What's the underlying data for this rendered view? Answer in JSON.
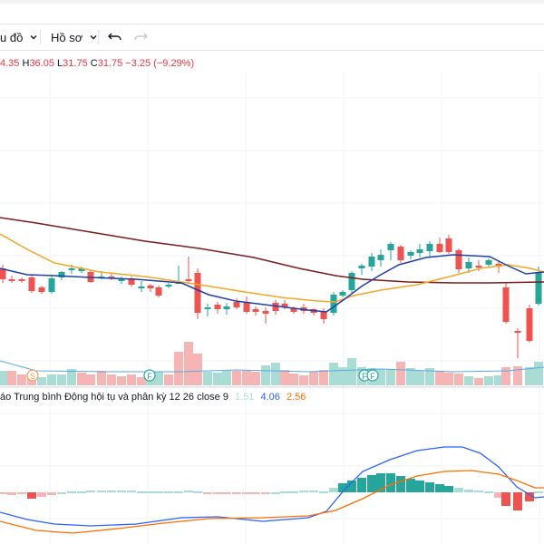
{
  "toolbar": {
    "chart_type_label": "u đồ",
    "profile_label": "Hồ sơ"
  },
  "legend": {
    "ohlc": [
      {
        "key": "",
        "value": "4.35"
      },
      {
        "key": "H",
        "value": "36.05"
      },
      {
        "key": "L",
        "value": "31.75"
      },
      {
        "key": "C",
        "value": "31.75"
      },
      {
        "key": "",
        "value": "−3.25 (−9.29%)"
      }
    ]
  },
  "macd": {
    "title": "áo Trung bình Động hội tụ và phân kỳ 12 26 close 9",
    "hist_value": "1.51",
    "macd_value": "4.06",
    "signal_value": "2.56"
  },
  "markers": {
    "split": "S",
    "flag": "F"
  },
  "colors": {
    "up": "#26a69a",
    "down": "#ef5350",
    "ma_fast": "#1e3ea8",
    "ma_mid": "#f5a623",
    "ma_slow": "#7b1b1b",
    "macd": "#2962ff",
    "signal": "#ff6d00"
  },
  "icons": [
    "chevron-down-icon",
    "undo-icon",
    "redo-icon"
  ]
}
